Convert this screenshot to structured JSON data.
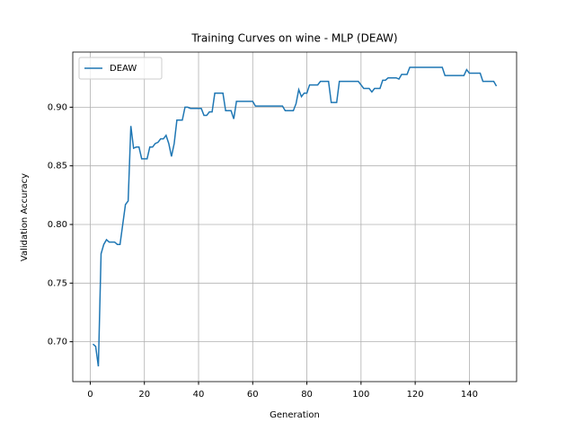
{
  "chart_data": {
    "type": "line",
    "title": "Training Curves on wine - MLP (DEAW)",
    "x_label": "Generation",
    "y_label": "Validation Accuracy",
    "x": [
      1,
      2,
      3,
      4,
      5,
      6,
      7,
      8,
      9,
      10,
      11,
      12,
      13,
      14,
      15,
      16,
      17,
      18,
      19,
      20,
      21,
      22,
      23,
      24,
      25,
      26,
      27,
      28,
      29,
      30,
      31,
      32,
      33,
      34,
      35,
      36,
      37,
      38,
      39,
      40,
      41,
      42,
      43,
      44,
      45,
      46,
      47,
      48,
      49,
      50,
      51,
      52,
      53,
      54,
      55,
      56,
      57,
      58,
      59,
      60,
      61,
      62,
      63,
      64,
      65,
      66,
      67,
      68,
      69,
      70,
      71,
      72,
      73,
      74,
      75,
      76,
      77,
      78,
      79,
      80,
      81,
      82,
      83,
      84,
      85,
      86,
      87,
      88,
      89,
      90,
      91,
      92,
      93,
      94,
      95,
      96,
      97,
      98,
      99,
      100,
      101,
      102,
      103,
      104,
      105,
      106,
      107,
      108,
      109,
      110,
      111,
      112,
      113,
      114,
      115,
      116,
      117,
      118,
      119,
      120,
      121,
      122,
      123,
      124,
      125,
      126,
      127,
      128,
      129,
      130,
      131,
      132,
      133,
      134,
      135,
      136,
      137,
      138,
      139,
      140,
      141,
      142,
      143,
      144,
      145,
      146,
      147,
      148,
      149,
      150
    ],
    "series": [
      {
        "name": "DEAW",
        "color": "#1f77b4",
        "values": [
          0.698,
          0.696,
          0.679,
          0.775,
          0.783,
          0.787,
          0.785,
          0.785,
          0.785,
          0.783,
          0.783,
          0.8,
          0.817,
          0.82,
          0.884,
          0.865,
          0.866,
          0.866,
          0.856,
          0.856,
          0.856,
          0.866,
          0.866,
          0.869,
          0.87,
          0.873,
          0.873,
          0.876,
          0.869,
          0.858,
          0.869,
          0.889,
          0.889,
          0.889,
          0.9,
          0.9,
          0.899,
          0.899,
          0.899,
          0.899,
          0.899,
          0.893,
          0.893,
          0.896,
          0.896,
          0.912,
          0.912,
          0.912,
          0.912,
          0.897,
          0.897,
          0.897,
          0.89,
          0.905,
          0.905,
          0.905,
          0.905,
          0.905,
          0.905,
          0.905,
          0.901,
          0.901,
          0.901,
          0.901,
          0.901,
          0.901,
          0.901,
          0.901,
          0.901,
          0.901,
          0.901,
          0.897,
          0.897,
          0.897,
          0.897,
          0.903,
          0.915,
          0.909,
          0.912,
          0.912,
          0.919,
          0.919,
          0.919,
          0.919,
          0.922,
          0.922,
          0.922,
          0.922,
          0.904,
          0.904,
          0.904,
          0.922,
          0.922,
          0.922,
          0.922,
          0.922,
          0.922,
          0.922,
          0.922,
          0.919,
          0.916,
          0.916,
          0.916,
          0.913,
          0.916,
          0.916,
          0.916,
          0.923,
          0.923,
          0.925,
          0.925,
          0.925,
          0.925,
          0.924,
          0.928,
          0.928,
          0.928,
          0.934,
          0.934,
          0.934,
          0.934,
          0.934,
          0.934,
          0.934,
          0.934,
          0.934,
          0.934,
          0.934,
          0.934,
          0.934,
          0.927,
          0.927,
          0.927,
          0.927,
          0.927,
          0.927,
          0.927,
          0.927,
          0.932,
          0.929,
          0.929,
          0.929,
          0.929,
          0.929,
          0.922,
          0.922,
          0.922,
          0.922,
          0.922,
          0.918
        ]
      }
    ],
    "xlim": [
      -6.45,
      157.45
    ],
    "xticks": [
      0,
      20,
      40,
      60,
      80,
      100,
      120,
      140
    ],
    "ylim": [
      0.666,
      0.947
    ],
    "yticks": [
      {
        "value": 0.7,
        "label": "0.70"
      },
      {
        "value": 0.75,
        "label": "0.75"
      },
      {
        "value": 0.8,
        "label": "0.80"
      },
      {
        "value": 0.85,
        "label": "0.85"
      },
      {
        "value": 0.9,
        "label": "0.90"
      }
    ],
    "grid": true,
    "legend": "upper left"
  }
}
